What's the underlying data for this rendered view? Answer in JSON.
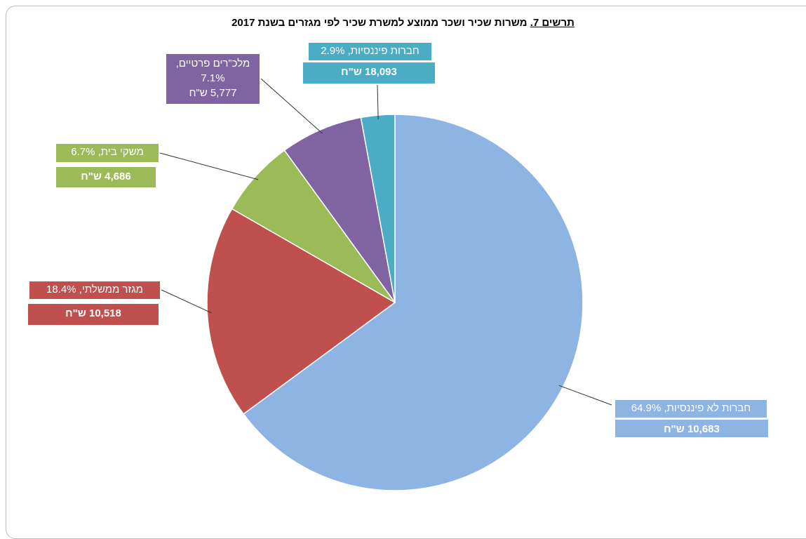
{
  "chart_data": {
    "type": "pie",
    "figure_label": "תרשים 7.",
    "title": "משרות שכיר ושכר ממוצע למשרת שכיר לפי מגזרים בשנת 2017",
    "categories": [
      "חברות לא פיננסיות,",
      "מגזר ממשלתי,",
      "משקי בית,",
      "מלכ\"רים פרטיים,",
      "חברות פיננסיות,"
    ],
    "values": [
      64.9,
      18.4,
      6.7,
      7.1,
      2.9
    ],
    "value_labels": [
      "64.9%",
      "18.4%",
      "6.7%",
      "7.1%",
      "2.9%"
    ],
    "salary_labels": [
      "10,683 ש\"ח",
      "10,518 ש\"ח",
      "4,686 ש\"ח",
      "5,777 ש\"ח",
      "18,093 ש\"ח"
    ],
    "colors": [
      "#8eb4e3",
      "#c0504d",
      "#9bbb59",
      "#8064a2",
      "#4bacc6"
    ]
  }
}
